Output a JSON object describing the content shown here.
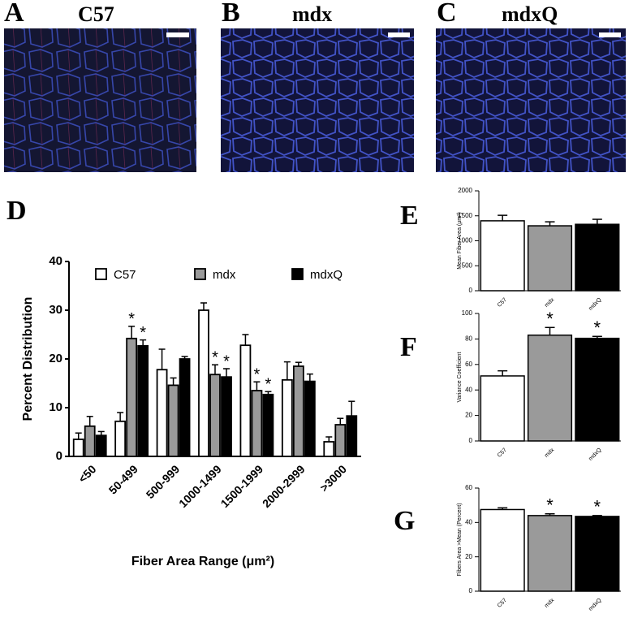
{
  "panels": [
    {
      "label": "A",
      "title": "C57"
    },
    {
      "label": "B",
      "title": "mdx"
    },
    {
      "label": "C",
      "title": "mdxQ"
    }
  ],
  "chart_data": [
    {
      "type": "grouped_bar",
      "panel_label": "D",
      "x_label": "Fiber Area Range (μm²)",
      "y_label": "Percent Distribution",
      "categories": [
        "<50",
        "50-499",
        "500-999",
        "1000-1499",
        "1500-1999",
        "2000-2999",
        ">3000"
      ],
      "series": [
        {
          "name": "C57",
          "color": "#ffffff",
          "values": [
            3.5,
            7.2,
            17.8,
            30,
            22.8,
            15.7,
            3
          ],
          "errors": [
            1.3,
            1.8,
            4.2,
            1.5,
            2.2,
            3.7,
            1
          ]
        },
        {
          "name": "mdx",
          "color": "#9a9a9a",
          "values": [
            6.2,
            24.2,
            14.6,
            16.8,
            13.5,
            18.5,
            6.5
          ],
          "errors": [
            2,
            2.5,
            1.5,
            2,
            1.8,
            0.8,
            1.3
          ],
          "markers": [
            null,
            "*",
            null,
            "*",
            "*",
            null,
            null
          ]
        },
        {
          "name": "mdxQ",
          "color": "#000000",
          "values": [
            4.3,
            22.7,
            20,
            16.3,
            12.7,
            15.4,
            8.3
          ],
          "errors": [
            0.8,
            1.2,
            0.5,
            1.7,
            0.6,
            1.5,
            3
          ],
          "markers": [
            null,
            "*",
            null,
            "*",
            "*",
            null,
            null
          ]
        }
      ],
      "ylim": [
        0,
        40
      ],
      "yticks": [
        0,
        10,
        20,
        30,
        40
      ],
      "legend": "top"
    },
    {
      "type": "bar",
      "panel_label": "E",
      "y_label": "Mean Fiber Area (μm²)",
      "categories": [
        "C57",
        "mdx",
        "mdxQ"
      ],
      "colors": [
        "#ffffff",
        "#9a9a9a",
        "#000000"
      ],
      "values": [
        1400,
        1300,
        1330
      ],
      "errors": [
        110,
        80,
        100
      ],
      "ylim": [
        0,
        2000
      ],
      "yticks": [
        0,
        500,
        1000,
        1500,
        2000
      ]
    },
    {
      "type": "bar",
      "panel_label": "F",
      "y_label": "Variance Coefficient",
      "categories": [
        "C57",
        "mdx",
        "mdxQ"
      ],
      "colors": [
        "#ffffff",
        "#9a9a9a",
        "#000000"
      ],
      "values": [
        51,
        83,
        80.5
      ],
      "errors": [
        4,
        6,
        1.5
      ],
      "markers": [
        null,
        "*",
        "*"
      ],
      "ylim": [
        0,
        100
      ],
      "yticks": [
        0,
        20,
        40,
        60,
        80,
        100
      ]
    },
    {
      "type": "bar",
      "panel_label": "G",
      "y_label": "Fibers Area >Mean (Percent)",
      "categories": [
        "C57",
        "mdx",
        "mdxQ"
      ],
      "colors": [
        "#ffffff",
        "#9a9a9a",
        "#000000"
      ],
      "values": [
        47.5,
        44,
        43.5
      ],
      "errors": [
        1,
        1,
        0.5
      ],
      "markers": [
        null,
        "*",
        "*"
      ],
      "ylim": [
        0,
        60
      ],
      "yticks": [
        0,
        20,
        40,
        60
      ]
    }
  ]
}
